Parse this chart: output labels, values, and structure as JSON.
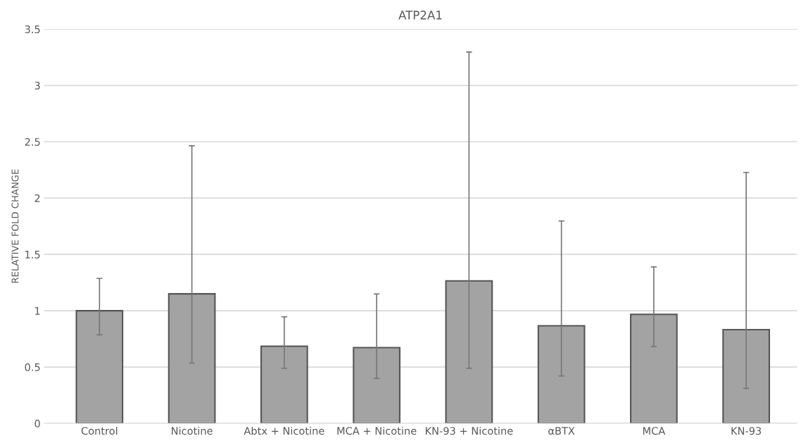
{
  "chart_data": {
    "type": "bar",
    "title": "ATP2A1",
    "ylabel": "RELATIVE FOLD CHANGE",
    "categories": [
      "Control",
      "Nicotine",
      "Abtx + Nicotine",
      "MCA + Nicotine",
      "KN-93 + Nicotine",
      "αBTX",
      "MCA",
      "KN-93"
    ],
    "values": [
      1.0,
      1.15,
      0.685,
      0.672,
      1.265,
      0.866,
      0.968,
      0.832
    ],
    "errors": [
      [
        0.786,
        1.287
      ],
      [
        0.535,
        2.465
      ],
      [
        0.489,
        0.946
      ],
      [
        0.399,
        1.149
      ],
      [
        0.489,
        3.297
      ],
      [
        0.421,
        1.797
      ],
      [
        0.682,
        1.389
      ],
      [
        0.31,
        2.228
      ]
    ],
    "color": "#a3a3a3",
    "ylim": [
      0,
      3.5
    ],
    "yticks": [
      0,
      0.5,
      1,
      1.5,
      2,
      2.5,
      3,
      3.5
    ],
    "grid": "y"
  }
}
